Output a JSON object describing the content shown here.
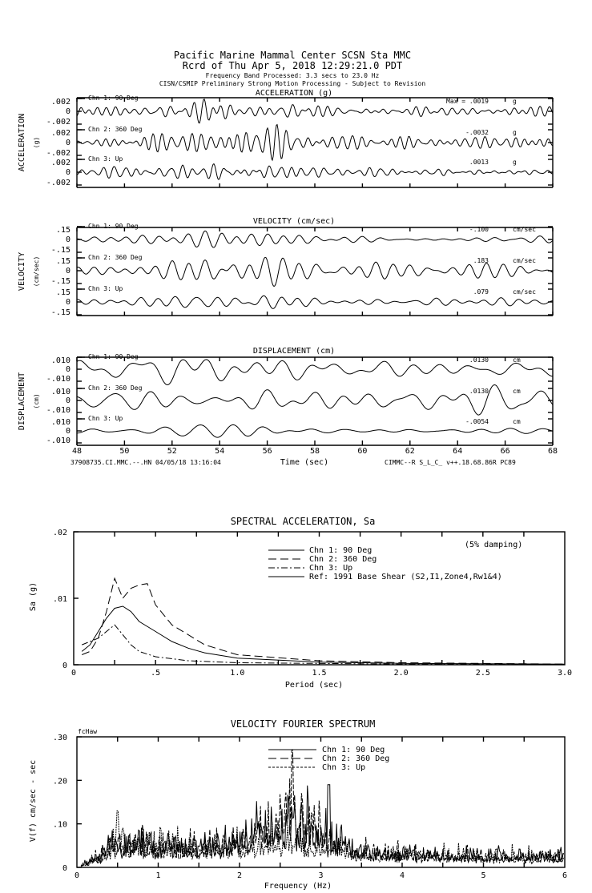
{
  "header": {
    "line1": "Pacific Marine Mammal Center     SCSN Sta MMC",
    "line2": "Rcrd of Thu Apr  5, 2018 12:29:21.0 PDT",
    "line3": "Frequency Band Processed: 3.3 secs to 23.0 Hz",
    "line4": "CISN/CSMIP Preliminary Strong Motion Processing - Subject to Revision"
  },
  "footer": {
    "left": "37908735.CI.MMC.--.HN 04/05/18 13:16:04",
    "right": "CIMMC--R  S_L_C_  v++.18.68.86R PC89"
  },
  "chart_data": [
    {
      "type": "line",
      "title": "ACCELERATION (g)",
      "ylabel": "ACCELERATION",
      "yunit": "(g)",
      "xlabel": "Time (sec)",
      "xlim": [
        48,
        68
      ],
      "xticks": [
        "48",
        "50",
        "52",
        "54",
        "56",
        "58",
        "60",
        "62",
        "64",
        "66",
        "68"
      ],
      "yticks": [
        ".002",
        "0",
        "-.002"
      ],
      "ylim": [
        -0.002,
        0.002
      ],
      "max_prefix": "Max =",
      "series": [
        {
          "name": "Chn 1: 90 Deg",
          "peak": ".0019",
          "unit": "g",
          "peak_value": 0.0019
        },
        {
          "name": "Chn 2: 360 Deg",
          "peak": "-.0032",
          "unit": "g",
          "peak_value": -0.0032
        },
        {
          "name": "Chn 3: Up",
          "peak": ".0013",
          "unit": "g",
          "peak_value": 0.0013
        }
      ]
    },
    {
      "type": "line",
      "title": "VELOCITY (cm/sec)",
      "ylabel": "VELOCITY",
      "yunit": "(cm/sec)",
      "xlim": [
        48,
        68
      ],
      "yticks": [
        ".15",
        "0",
        "-.15"
      ],
      "ylim": [
        -0.15,
        0.15
      ],
      "series": [
        {
          "name": "Chn 1: 90 Deg",
          "peak": "-.100",
          "unit": "cm/sec",
          "peak_value": -0.1
        },
        {
          "name": "Chn 2: 360 Deg",
          "peak": ".183",
          "unit": "cm/sec",
          "peak_value": 0.183
        },
        {
          "name": "Chn 3: Up",
          "peak": ".079",
          "unit": "cm/sec",
          "peak_value": 0.079
        }
      ]
    },
    {
      "type": "line",
      "title": "DISPLACEMENT (cm)",
      "ylabel": "DISPLACEMENT",
      "yunit": "(cm)",
      "xlim": [
        48,
        68
      ],
      "yticks": [
        ".010",
        "0",
        "-.010"
      ],
      "ylim": [
        -0.01,
        0.01
      ],
      "series": [
        {
          "name": "Chn 1: 90 Deg",
          "peak": ".0130",
          "unit": "cm",
          "peak_value": 0.013
        },
        {
          "name": "Chn 2: 360 Deg",
          "peak": ".0130",
          "unit": "cm",
          "peak_value": 0.013
        },
        {
          "name": "Chn 3: Up",
          "peak": "-.0054",
          "unit": "cm",
          "peak_value": -0.0054
        }
      ]
    },
    {
      "type": "line",
      "title": "SPECTRAL ACCELERATION, Sa",
      "ylabel": "Sa (g)",
      "xlabel": "Period (sec)",
      "annotation": "(5% damping)",
      "xlim": [
        0,
        3.0
      ],
      "ylim": [
        0,
        0.02
      ],
      "xticks": [
        ".5",
        "1.0",
        "1.5",
        "2.0",
        "2.5",
        "3.0"
      ],
      "xtick_values": [
        0.5,
        1.0,
        1.5,
        2.0,
        2.5,
        3.0
      ],
      "yticks": [
        ".02",
        ".01",
        "0"
      ],
      "ytick_values": [
        0.02,
        0.01,
        0
      ],
      "legend": [
        "Chn 1: 90 Deg",
        "Chn 2: 360 Deg",
        "Chn 3: Up",
        "Ref: 1991 Base Shear (S2,I1,Zone4,Rw1&4)"
      ],
      "series": [
        {
          "name": "Chn 1: 90 Deg",
          "style": "solid",
          "x": [
            0.05,
            0.1,
            0.15,
            0.2,
            0.25,
            0.3,
            0.35,
            0.4,
            0.5,
            0.6,
            0.7,
            0.8,
            1.0,
            1.5,
            2.0,
            3.0
          ],
          "y": [
            0.002,
            0.003,
            0.005,
            0.007,
            0.0085,
            0.0088,
            0.008,
            0.0065,
            0.005,
            0.0035,
            0.0025,
            0.0018,
            0.001,
            0.0004,
            0.0002,
            0.0001
          ]
        },
        {
          "name": "Chn 2: 360 Deg",
          "style": "dashed",
          "x": [
            0.05,
            0.1,
            0.15,
            0.2,
            0.25,
            0.3,
            0.35,
            0.4,
            0.45,
            0.5,
            0.6,
            0.7,
            0.8,
            1.0,
            1.5,
            2.0,
            3.0
          ],
          "y": [
            0.0015,
            0.002,
            0.004,
            0.008,
            0.013,
            0.01,
            0.0115,
            0.012,
            0.0122,
            0.009,
            0.006,
            0.0045,
            0.003,
            0.0015,
            0.0006,
            0.0003,
            0.0001
          ]
        },
        {
          "name": "Chn 3: Up",
          "style": "dash-dot",
          "x": [
            0.05,
            0.1,
            0.15,
            0.2,
            0.25,
            0.3,
            0.35,
            0.4,
            0.5,
            0.7,
            1.0,
            2.0,
            3.0
          ],
          "y": [
            0.003,
            0.0035,
            0.004,
            0.005,
            0.006,
            0.0045,
            0.003,
            0.002,
            0.0012,
            0.0006,
            0.0003,
            0.0001,
            5e-05
          ]
        }
      ]
    },
    {
      "type": "line",
      "title": "VELOCITY FOURIER SPECTRUM",
      "ylabel": "V(f)   cm/sec - sec",
      "xlabel": "Frequency (Hz)",
      "corner_label": "fcHaw",
      "xlim": [
        0,
        6
      ],
      "ylim": [
        0,
        0.3
      ],
      "xticks": [
        "0",
        "1",
        "2",
        "3",
        "4",
        "5",
        "6"
      ],
      "yticks": [
        ".30",
        ".20",
        ".10",
        "0"
      ],
      "ytick_values": [
        0.3,
        0.2,
        0.1,
        0
      ],
      "legend": [
        "Chn 1: 90 Deg",
        "Chn 2: 360 Deg",
        "Chn 3: Up"
      ],
      "series": [
        {
          "name": "Chn 1: 90 Deg",
          "style": "solid",
          "peak_freq": 3.1,
          "peak_value": 0.19
        },
        {
          "name": "Chn 2: 360 Deg",
          "style": "dashed",
          "peak_freq": 2.65,
          "peak_value": 0.27
        },
        {
          "name": "Chn 3: Up",
          "style": "dotted",
          "peak_freq": 0.5,
          "peak_value": 0.13
        }
      ]
    }
  ]
}
